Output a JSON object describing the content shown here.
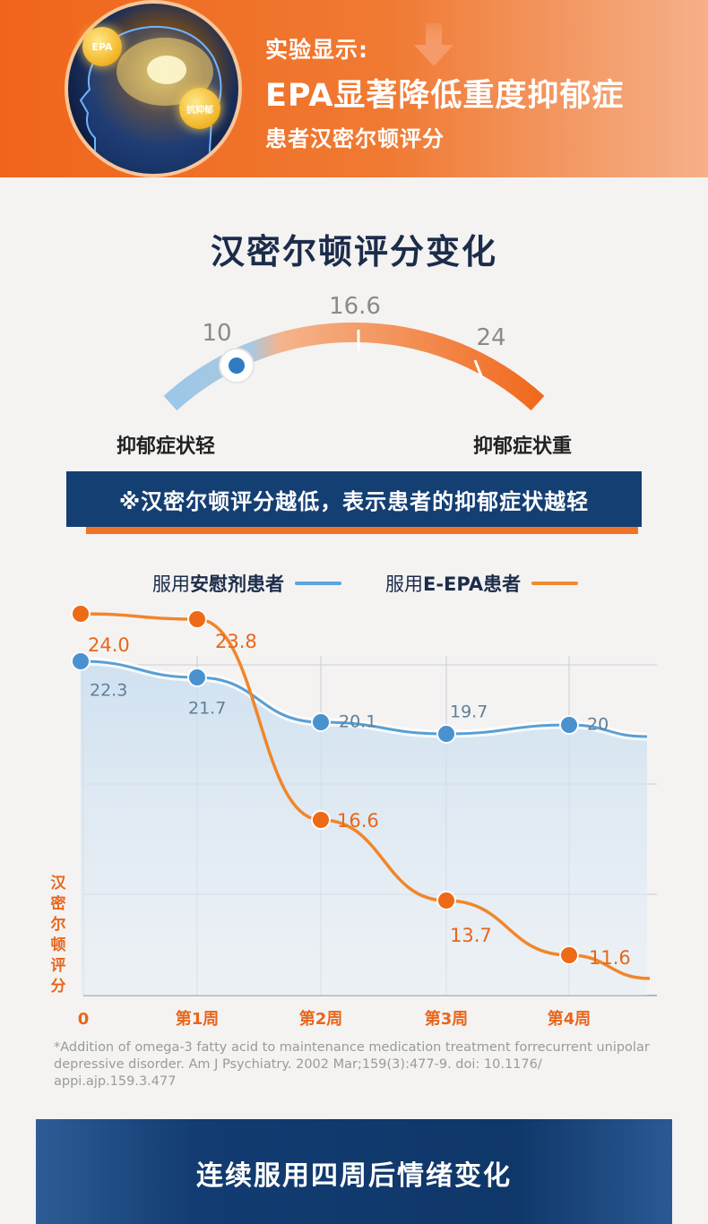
{
  "header": {
    "line1": "实验显示:",
    "line2": "EPA显著降低重度抑郁症",
    "line3": "患者汉密尔顿评分",
    "badge_epa": "EPA",
    "badge_anti": "抗抑郁",
    "icon": "brain-icon",
    "colors": {
      "orange": "#f0651a",
      "light": "#f6b08a"
    }
  },
  "section_title": "汉密尔顿评分变化",
  "gauge": {
    "values": [
      "10",
      "16.6",
      "24"
    ],
    "current": 10,
    "range": [
      10,
      24
    ],
    "left_label": "抑郁症状轻",
    "right_label": "抑郁症状重",
    "colors": {
      "low": "#8cbbe0",
      "high": "#f07428"
    }
  },
  "note": "※汉密尔顿评分越低，表示患者的抑郁症状越轻",
  "legend": {
    "placebo_plain": "服用",
    "placebo_strong": "安慰剂患者",
    "epa_plain": "服用",
    "epa_strong": "E-EPA患者"
  },
  "chart_data": {
    "type": "line",
    "categories": [
      "0",
      "第1周",
      "第2周",
      "第3周",
      "第4周"
    ],
    "ylabel": "汉密尔顿评分",
    "series": [
      {
        "name": "服用安慰剂患者",
        "values": [
          22.3,
          21.7,
          20.1,
          19.7,
          20
        ],
        "labels": [
          "22.3",
          "21.7",
          "20.1",
          "19.7",
          "20"
        ],
        "color": "#5a9fd4"
      },
      {
        "name": "服用E-EPA患者",
        "values": [
          24.0,
          23.8,
          16.6,
          13.7,
          11.6
        ],
        "labels": [
          "24.0",
          "23.8",
          "16.6",
          "13.7",
          "11.6"
        ],
        "color": "#f0862a"
      }
    ],
    "grid": true
  },
  "footnote": "*Addition of omega-3 fatty acid to maintenance  medication treatment  forrecurrent unipolar depressive disorder. Am J Psychiatry. 2002 Mar;159(3):477-9. doi: 10.1176/ appi.ajp.159.3.477",
  "bottom_title": "连续服用四周后情绪变化"
}
